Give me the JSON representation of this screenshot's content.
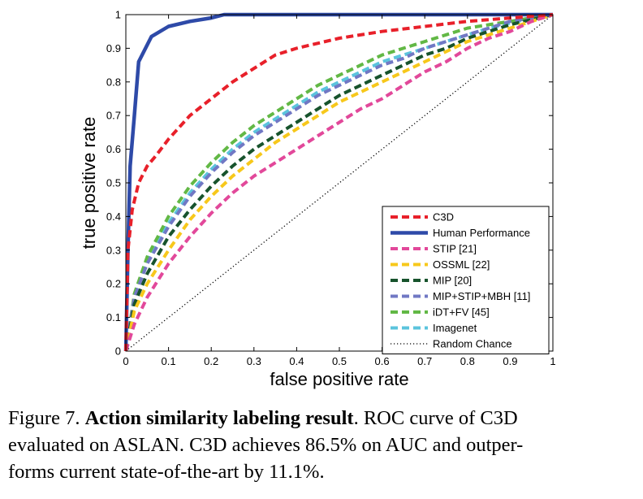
{
  "chart_data": {
    "type": "line",
    "xlabel": "false positive rate",
    "ylabel": "true positive rate",
    "xlim": [
      0,
      1
    ],
    "ylim": [
      0,
      1
    ],
    "x_ticks": [
      "0",
      "0.1",
      "0.2",
      "0.3",
      "0.4",
      "0.5",
      "0.6",
      "0.7",
      "0.8",
      "0.9",
      "1"
    ],
    "y_ticks": [
      "0",
      "0.1",
      "0.2",
      "0.3",
      "0.4",
      "0.5",
      "0.6",
      "0.7",
      "0.8",
      "0.9",
      "1"
    ],
    "grid": false,
    "legend_position": "bottom-right",
    "series": [
      {
        "name": "C3D",
        "color": "#e8202a",
        "style": "dashed",
        "x": [
          0,
          0.005,
          0.015,
          0.03,
          0.05,
          0.07,
          0.1,
          0.15,
          0.2,
          0.25,
          0.3,
          0.35,
          0.4,
          0.5,
          0.6,
          0.7,
          0.8,
          0.9,
          1.0
        ],
        "y": [
          0,
          0.3,
          0.42,
          0.5,
          0.55,
          0.58,
          0.63,
          0.7,
          0.75,
          0.8,
          0.84,
          0.88,
          0.9,
          0.93,
          0.95,
          0.965,
          0.98,
          0.99,
          1.0
        ]
      },
      {
        "name": "Human Performance",
        "color": "#2e4aa8",
        "style": "solid",
        "x": [
          0,
          0.005,
          0.01,
          0.02,
          0.03,
          0.06,
          0.1,
          0.15,
          0.2,
          0.23,
          0.3,
          0.5,
          1.0
        ],
        "y": [
          0,
          0.3,
          0.55,
          0.7,
          0.86,
          0.935,
          0.965,
          0.98,
          0.99,
          1.0,
          1.0,
          1.0,
          1.0
        ]
      },
      {
        "name": "STIP [21]",
        "color": "#e2489a",
        "style": "dashed",
        "x": [
          0,
          0.02,
          0.05,
          0.1,
          0.15,
          0.2,
          0.25,
          0.3,
          0.35,
          0.4,
          0.45,
          0.5,
          0.55,
          0.6,
          0.65,
          0.7,
          0.75,
          0.8,
          0.85,
          0.9,
          0.95,
          1.0
        ],
        "y": [
          0,
          0.08,
          0.16,
          0.26,
          0.34,
          0.41,
          0.47,
          0.52,
          0.56,
          0.6,
          0.64,
          0.68,
          0.72,
          0.75,
          0.79,
          0.83,
          0.86,
          0.9,
          0.93,
          0.95,
          0.98,
          1.0
        ]
      },
      {
        "name": "OSSML [22]",
        "color": "#f7c81b",
        "style": "dashed",
        "x": [
          0,
          0.02,
          0.05,
          0.1,
          0.15,
          0.2,
          0.25,
          0.3,
          0.35,
          0.4,
          0.45,
          0.5,
          0.55,
          0.6,
          0.65,
          0.7,
          0.75,
          0.8,
          0.85,
          0.9,
          0.95,
          1.0
        ],
        "y": [
          0,
          0.12,
          0.2,
          0.3,
          0.39,
          0.46,
          0.52,
          0.57,
          0.62,
          0.66,
          0.7,
          0.74,
          0.77,
          0.8,
          0.83,
          0.86,
          0.89,
          0.92,
          0.94,
          0.96,
          0.98,
          1.0
        ]
      },
      {
        "name": "MIP [20]",
        "color": "#17532c",
        "style": "dashed",
        "x": [
          0,
          0.02,
          0.05,
          0.1,
          0.15,
          0.2,
          0.25,
          0.3,
          0.35,
          0.4,
          0.45,
          0.5,
          0.55,
          0.6,
          0.65,
          0.7,
          0.75,
          0.8,
          0.85,
          0.9,
          0.95,
          1.0
        ],
        "y": [
          0,
          0.14,
          0.23,
          0.34,
          0.42,
          0.49,
          0.55,
          0.6,
          0.64,
          0.68,
          0.72,
          0.76,
          0.79,
          0.82,
          0.85,
          0.88,
          0.9,
          0.93,
          0.95,
          0.97,
          0.985,
          1.0
        ]
      },
      {
        "name": "MIP+STIP+MBH [11]",
        "color": "#7178c4",
        "style": "dashed",
        "x": [
          0,
          0.02,
          0.05,
          0.1,
          0.15,
          0.2,
          0.25,
          0.3,
          0.35,
          0.4,
          0.45,
          0.5,
          0.55,
          0.6,
          0.65,
          0.7,
          0.75,
          0.8,
          0.85,
          0.9,
          0.95,
          1.0
        ],
        "y": [
          0,
          0.16,
          0.26,
          0.37,
          0.46,
          0.53,
          0.59,
          0.64,
          0.68,
          0.72,
          0.76,
          0.79,
          0.82,
          0.85,
          0.87,
          0.9,
          0.92,
          0.94,
          0.96,
          0.98,
          0.99,
          1.0
        ]
      },
      {
        "name": "iDT+FV [45]",
        "color": "#62b845",
        "style": "dashed",
        "x": [
          0,
          0.02,
          0.05,
          0.1,
          0.15,
          0.2,
          0.25,
          0.3,
          0.35,
          0.4,
          0.45,
          0.5,
          0.55,
          0.6,
          0.65,
          0.7,
          0.75,
          0.8,
          0.85,
          0.9,
          0.95,
          1.0
        ],
        "y": [
          0,
          0.17,
          0.28,
          0.4,
          0.49,
          0.56,
          0.62,
          0.67,
          0.71,
          0.75,
          0.79,
          0.82,
          0.85,
          0.88,
          0.9,
          0.92,
          0.94,
          0.96,
          0.97,
          0.98,
          0.99,
          1.0
        ]
      },
      {
        "name": "Imagenet",
        "color": "#5bc4dd",
        "style": "dashed",
        "x": [
          0,
          0.02,
          0.05,
          0.1,
          0.15,
          0.2,
          0.25,
          0.3,
          0.35,
          0.4,
          0.45,
          0.5,
          0.55,
          0.6,
          0.65,
          0.7,
          0.75,
          0.8,
          0.85,
          0.9,
          0.95,
          1.0
        ],
        "y": [
          0,
          0.16,
          0.27,
          0.38,
          0.47,
          0.54,
          0.6,
          0.65,
          0.69,
          0.73,
          0.77,
          0.8,
          0.83,
          0.86,
          0.88,
          0.9,
          0.92,
          0.94,
          0.96,
          0.975,
          0.99,
          1.0
        ]
      },
      {
        "name": "Random Chance",
        "color": "#000000",
        "style": "dotted",
        "x": [
          0,
          1
        ],
        "y": [
          0,
          1
        ]
      }
    ]
  },
  "caption": {
    "label": "Figure 7.",
    "title": "Action similarity labeling result",
    "line1_rest": ".  ROC curve of C3D",
    "line2": "evaluated on ASLAN. C3D achieves 86.5% on AUC and outper-",
    "line3": "forms current state-of-the-art by 11.1%."
  }
}
